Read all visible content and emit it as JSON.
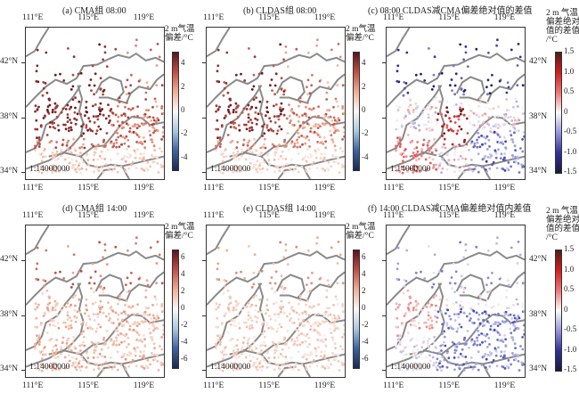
{
  "scale_text": "1:14000000",
  "lon_ticks": [
    "111°E",
    "115°E",
    "119°E"
  ],
  "lat_ticks": [
    "42°N",
    "38°N",
    "34°N"
  ],
  "panels": [
    {
      "id": "a",
      "title": "(a) CMA组 08:00",
      "cb_title": [
        "2 m气温",
        "偏差/°C"
      ],
      "cb_ticks": [
        "4",
        "2",
        "0",
        "-2",
        "-4"
      ],
      "cb_range": [
        -5,
        5
      ],
      "cmap": "rdbu",
      "field": "cma08"
    },
    {
      "id": "b",
      "title": "(b) CLDAS组 08:00",
      "cb_title": [
        "2 m气温",
        "偏差/°C"
      ],
      "cb_ticks": [
        "4",
        "2",
        "0",
        "-2",
        "-4"
      ],
      "cb_range": [
        -5,
        5
      ],
      "cmap": "rdbu",
      "field": "cldas08"
    },
    {
      "id": "c",
      "title": "(c) 08:00 CLDAS减CMA偏差绝对值的差值",
      "cb_title": [
        "2 m 气温",
        "偏差绝对",
        "值的差值",
        "/°C"
      ],
      "cb_ticks": [
        "1.5",
        "1.0",
        "0.5",
        "0",
        "-0.5",
        "-1.0",
        "-1.5"
      ],
      "cb_range": [
        -1.5,
        1.5
      ],
      "cmap": "seismic",
      "field": "diff08"
    },
    {
      "id": "d",
      "title": "(d) CMA组 14:00",
      "cb_title": [
        "2 m气温",
        "偏差/°C"
      ],
      "cb_ticks": [
        "6",
        "4",
        "2",
        "0",
        "-2",
        "-4",
        "-6"
      ],
      "cb_range": [
        -7,
        7
      ],
      "cmap": "rdbu",
      "field": "cma14"
    },
    {
      "id": "e",
      "title": "(e) CLDAS组 14:00",
      "cb_title": [
        "2 m气温",
        "偏差/°C"
      ],
      "cb_ticks": [
        "6",
        "4",
        "2",
        "0",
        "-2",
        "-4",
        "-6"
      ],
      "cb_range": [
        -7,
        7
      ],
      "cmap": "rdbu",
      "field": "cldas14"
    },
    {
      "id": "f",
      "title": "(f) 14:00 CLDAS减CMA偏差绝对值内差值",
      "cb_title": [
        "2 m 气温",
        "偏差绝对",
        "值的差值",
        "/°C"
      ],
      "cb_ticks": [
        "1.5",
        "1.0",
        "0.5",
        "0",
        "-0.5",
        "-1.0",
        "-1.5"
      ],
      "cb_range": [
        -1.5,
        1.5
      ],
      "cmap": "seismic",
      "field": "diff14"
    }
  ],
  "colors": {
    "boundary": "#8a8a8a",
    "frame": "#333333"
  }
}
